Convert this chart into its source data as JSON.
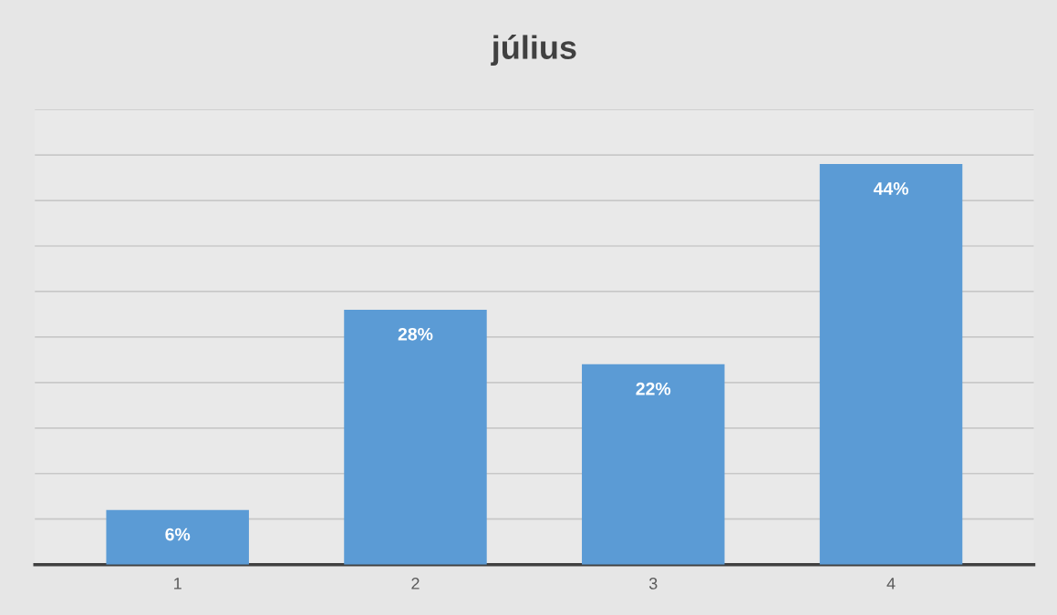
{
  "chart_data": {
    "type": "bar",
    "title": "július",
    "categories": [
      "1",
      "2",
      "3",
      "4"
    ],
    "values": [
      6,
      28,
      22,
      44
    ],
    "value_labels": [
      "6%",
      "28%",
      "22%",
      "44%"
    ],
    "color": "#5b9bd5",
    "ylim": [
      0,
      50
    ],
    "yticks": [
      {
        "value": 0,
        "label": null
      },
      {
        "value": 5,
        "label": null
      },
      {
        "value": 10,
        "label": null
      },
      {
        "value": 15,
        "label": null
      },
      {
        "value": 20,
        "label": null
      },
      {
        "value": 25,
        "label": null
      },
      {
        "value": 30,
        "label": null
      },
      {
        "value": 35,
        "label": null
      },
      {
        "value": 40,
        "label": null
      },
      {
        "value": 45,
        "label": null
      },
      {
        "value": 50,
        "label": null
      }
    ],
    "grid": "y",
    "tick_labels": "x",
    "legend": false
  }
}
